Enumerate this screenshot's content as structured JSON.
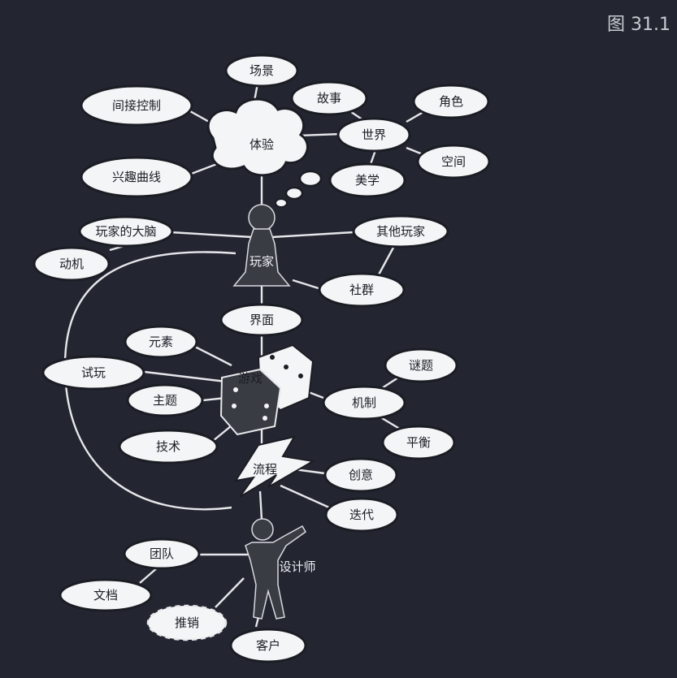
{
  "figure_label": "图 31.1",
  "nodes": {
    "scene": "场景",
    "story": "故事",
    "role": "角色",
    "indirect": "间接控制",
    "experience": "体验",
    "world": "世界",
    "space": "空间",
    "interest": "兴趣曲线",
    "aesthetics": "美学",
    "brain": "玩家的大脑",
    "others": "其他玩家",
    "motivation": "动机",
    "player": "玩家",
    "community": "社群",
    "interface": "界面",
    "elements": "元素",
    "puzzle": "谜题",
    "playtest": "试玩",
    "game": "游戏",
    "mechanics": "机制",
    "theme": "主题",
    "balance": "平衡",
    "tech": "技术",
    "process": "流程",
    "creativity": "创意",
    "iteration": "迭代",
    "team": "团队",
    "designer": "设计师",
    "docs": "文档",
    "marketing": "推销",
    "client": "客户"
  },
  "colors": {
    "background": "#232631",
    "oval_fill": "#f4f5f7",
    "line": "#e6e7ea",
    "figure_dark": "#3a3c44"
  }
}
